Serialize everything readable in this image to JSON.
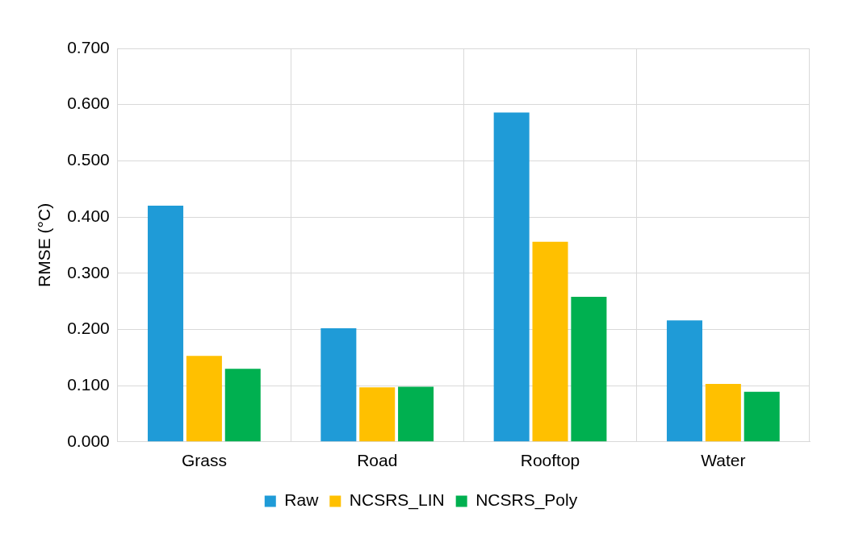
{
  "chart_data": {
    "type": "bar",
    "ylabel": "RMSE (°C)",
    "categories": [
      "Grass",
      "Road",
      "Rooftop",
      "Water"
    ],
    "series": [
      {
        "name": "Raw",
        "color": "#1f9bd7",
        "values": [
          0.42,
          0.202,
          0.586,
          0.216
        ]
      },
      {
        "name": "NCSRS_LIN",
        "color": "#ffc000",
        "values": [
          0.153,
          0.097,
          0.356,
          0.103
        ]
      },
      {
        "name": "NCSRS_Poly",
        "color": "#00b050",
        "values": [
          0.13,
          0.098,
          0.258,
          0.089
        ]
      }
    ],
    "ylim": [
      0,
      0.7
    ],
    "yticks": [
      {
        "value": 0,
        "label": "0.000"
      },
      {
        "value": 0.1,
        "label": "0.100"
      },
      {
        "value": 0.2,
        "label": "0.200"
      },
      {
        "value": 0.3,
        "label": "0.300"
      },
      {
        "value": 0.4,
        "label": "0.400"
      },
      {
        "value": 0.5,
        "label": "0.500"
      },
      {
        "value": 0.6,
        "label": "0.600"
      },
      {
        "value": 0.7,
        "label": "0.700"
      }
    ],
    "grid": true,
    "legend": "bottom"
  }
}
